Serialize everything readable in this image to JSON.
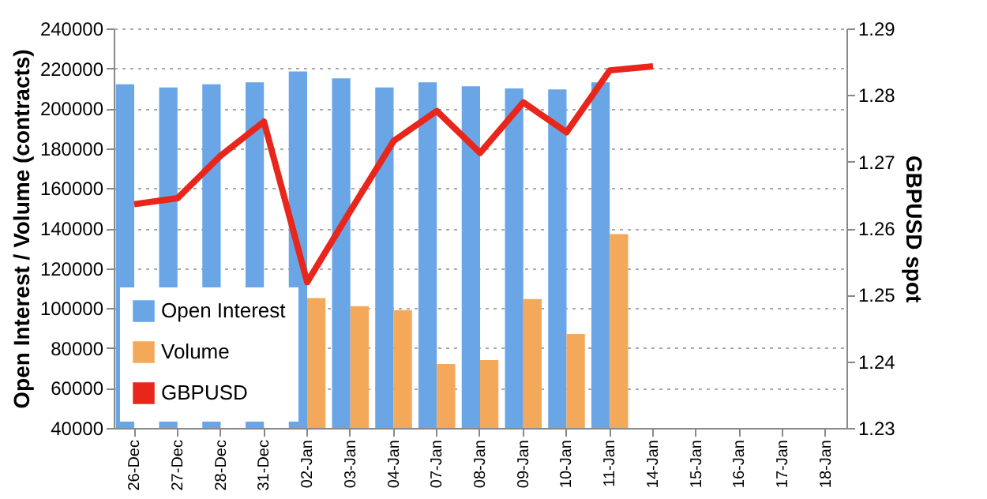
{
  "chart_data": {
    "type": "bar",
    "ylabel": "Open Interest / Volume (contracts)",
    "y2label": "GBPUSD spot",
    "categories": [
      "26-Dec",
      "27-Dec",
      "28-Dec",
      "31-Dec",
      "02-Jan",
      "03-Jan",
      "04-Jan",
      "07-Jan",
      "08-Jan",
      "09-Jan",
      "10-Jan",
      "11-Jan",
      "14-Jan",
      "15-Jan",
      "16-Jan",
      "17-Jan",
      "18-Jan"
    ],
    "series": [
      {
        "name": "Open Interest",
        "color": "#6aa6e6",
        "values": [
          212000,
          210500,
          212000,
          213000,
          218500,
          215000,
          210500,
          213000,
          211000,
          210000,
          209500,
          213000,
          null,
          null,
          null,
          null,
          null
        ]
      },
      {
        "name": "Volume",
        "color": "#f4a95a",
        "values": [
          null,
          null,
          null,
          null,
          105000,
          101000,
          99000,
          72000,
          74000,
          104500,
          87000,
          137000,
          null,
          null,
          null,
          null,
          null
        ]
      },
      {
        "name": "GBPUSD",
        "type": "line",
        "axis": "y2",
        "color": "#e8261b",
        "values": [
          1.2636,
          1.2645,
          1.2709,
          1.276,
          1.2519,
          1.2626,
          1.2731,
          1.2776,
          1.2713,
          1.2789,
          1.2744,
          1.2837,
          1.2843,
          null,
          null,
          null,
          null
        ]
      }
    ],
    "ylim": [
      40000,
      240000
    ],
    "yticks": [
      40000,
      60000,
      80000,
      100000,
      120000,
      140000,
      160000,
      180000,
      200000,
      220000,
      240000
    ],
    "y2lim": [
      1.23,
      1.29
    ],
    "y2ticks": [
      1.23,
      1.24,
      1.25,
      1.26,
      1.27,
      1.28,
      1.29
    ],
    "grid": "y",
    "legend": "bottom left"
  }
}
